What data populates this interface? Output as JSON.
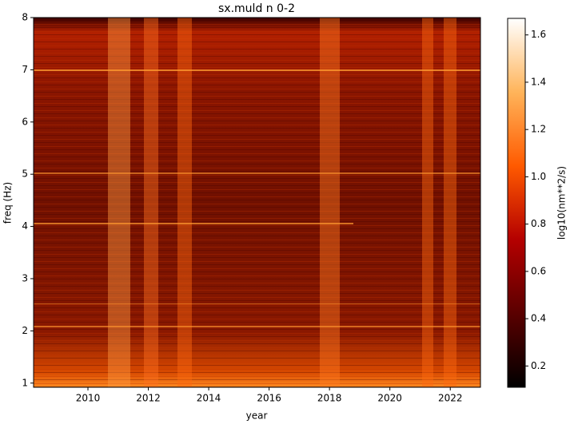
{
  "chart_data": {
    "type": "heatmap",
    "title": "sx.muld n 0-2",
    "x_label": "year",
    "y_label": "freq (Hz)",
    "xlim": [
      2008.2,
      2023.0
    ],
    "xticks": [
      2010,
      2012,
      2014,
      2016,
      2018,
      2020,
      2022
    ],
    "ylim": [
      0.92,
      8
    ],
    "yticks": [
      1,
      2,
      3,
      4,
      5,
      6,
      7,
      8
    ],
    "colorbar": {
      "label": "log10(nm**2/s)",
      "lim": [
        0.11,
        1.67
      ],
      "ticks": [
        0.2,
        0.4,
        0.6,
        0.8,
        {
          "value": 1,
          "label": "1.0"
        },
        1.2,
        1.4,
        1.6
      ],
      "colormap": [
        "#000000",
        "#5a0000",
        "#b40000",
        "#ff5a00",
        "#ffb45a",
        "#ffffff"
      ]
    }
  }
}
